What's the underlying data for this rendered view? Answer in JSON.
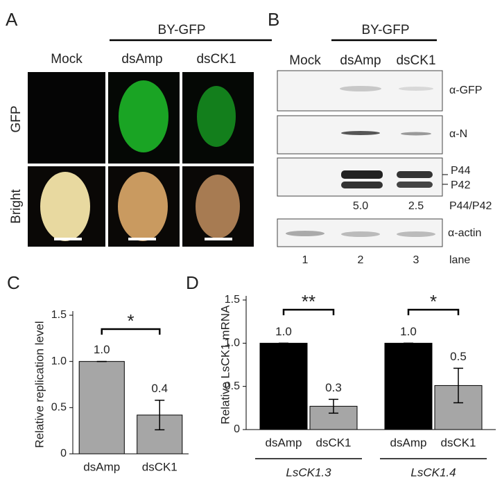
{
  "panel_a": {
    "label": "A",
    "group": "BY-GFP",
    "columns": [
      "Mock",
      "dsAmp",
      "dsCK1"
    ],
    "rows": [
      "GFP",
      "Bright"
    ]
  },
  "panel_b": {
    "label": "B",
    "group": "BY-GFP",
    "columns": [
      "Mock",
      "dsAmp",
      "dsCK1"
    ],
    "blots": [
      "α-GFP",
      "α-N",
      "P44",
      "P42",
      "α-actin"
    ],
    "ratios": [
      "5.0",
      "2.5"
    ],
    "ratio_label": "P44/P42",
    "lanes": [
      "1",
      "2",
      "3"
    ],
    "lane_label": "lane"
  },
  "chart_data": [
    {
      "type": "bar",
      "label": "C",
      "y_label": "Relative replication level",
      "categories": [
        "dsAmp",
        "dsCK1"
      ],
      "values": [
        1.0,
        0.42
      ],
      "errors": [
        0,
        0.16
      ],
      "value_labels": [
        "1.0",
        "0.4"
      ],
      "color": "#a6a6a6",
      "significance": "*",
      "ylim": [
        0,
        1.5
      ],
      "yticks": [
        0,
        0.5,
        {
          "value": 1,
          "label": "1.0"
        },
        1.5
      ]
    },
    {
      "type": "grouped_bar",
      "label": "D",
      "y_label": "Relative LsCK1 mRNA",
      "categories": [
        "LsCK1.3",
        "LsCK1.4"
      ],
      "series": [
        {
          "name": "dsAmp",
          "color": "#000000",
          "values": [
            1.0,
            1.0
          ],
          "errors": [
            0,
            0
          ],
          "value_labels": [
            "1.0",
            "1.0"
          ]
        },
        {
          "name": "dsCK1",
          "color": "#a6a6a6",
          "values": [
            0.27,
            0.51
          ],
          "errors": [
            0.08,
            0.2
          ],
          "value_labels": [
            "0.3",
            "0.5"
          ]
        }
      ],
      "significance": [
        "**",
        "*"
      ],
      "ylim": [
        0,
        1.5
      ],
      "yticks": [
        0,
        0.5,
        {
          "value": 1,
          "label": "1.0"
        },
        1.5
      ]
    }
  ]
}
